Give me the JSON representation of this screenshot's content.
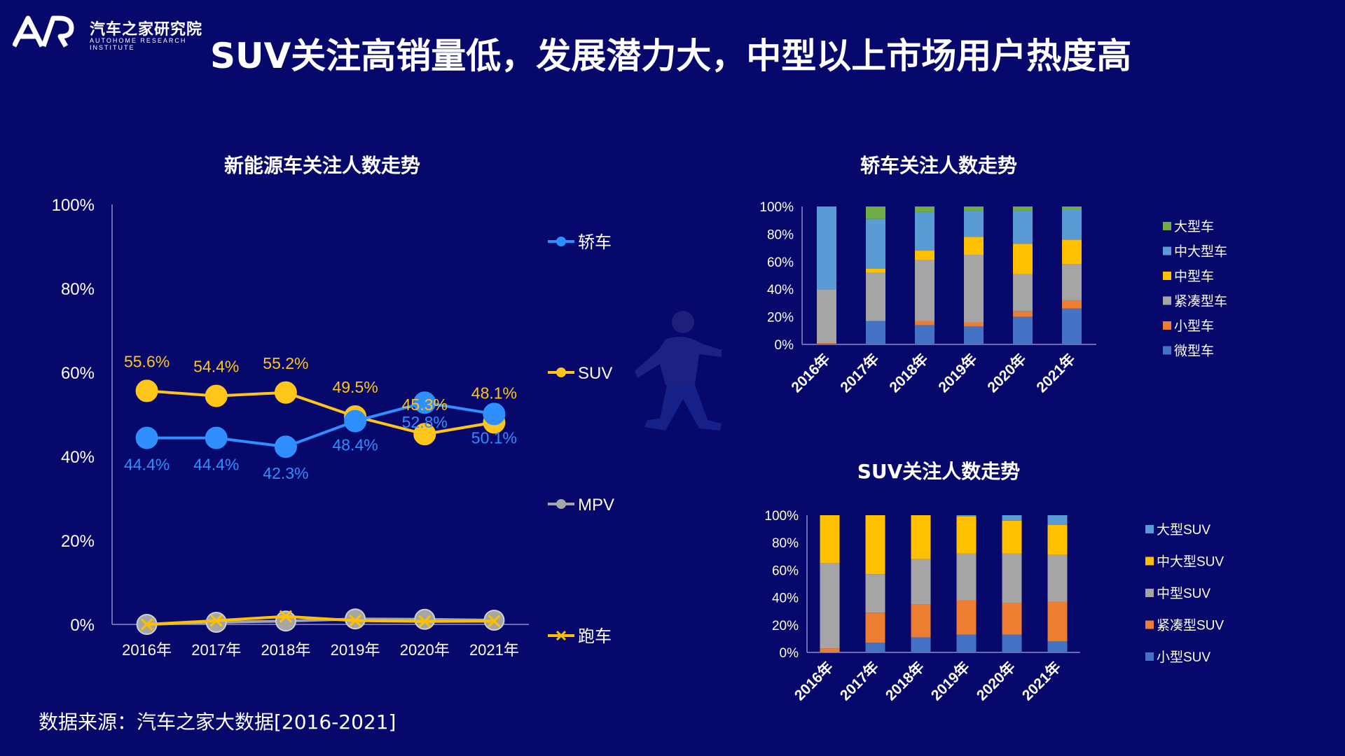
{
  "brand": {
    "name_cn": "汽车之家研究院",
    "name_en": "AUTOHOME RESEARCH INSTITUTE"
  },
  "title": "SUV关注高销量低，发展潜力大，中型以上市场用户热度高",
  "source": "数据来源：汽车之家大数据[2016-2021]",
  "colors": {
    "background": "#06086b",
    "sedan": "#2f8fff",
    "suv": "#ffc519",
    "mpv": "#a6a6a6",
    "sports": "#ffc000",
    "micro": "#4472c4",
    "small": "#ed7d31",
    "compact": "#a5a5a5",
    "mid": "#ffc000",
    "midlarge": "#5b9bd5",
    "large": "#70ad47"
  },
  "chart_data": [
    {
      "id": "nev-trend",
      "type": "line",
      "title": "新能源车关注人数走势",
      "categories": [
        "2016年",
        "2017年",
        "2018年",
        "2019年",
        "2020年",
        "2021年"
      ],
      "y_ticks": [
        "0%",
        "20%",
        "40%",
        "60%",
        "80%",
        "100%"
      ],
      "ylim": [
        0,
        100
      ],
      "legend_position": "right",
      "series": [
        {
          "name": "轿车",
          "values": [
            44.4,
            44.4,
            42.3,
            48.4,
            52.8,
            50.1
          ],
          "labels": [
            "44.4%",
            "44.4%",
            "42.3%",
            "48.4%",
            "52.8%",
            "50.1%"
          ]
        },
        {
          "name": "SUV",
          "values": [
            55.6,
            54.4,
            55.2,
            49.5,
            45.3,
            48.1
          ],
          "labels": [
            "55.6%",
            "54.4%",
            "55.2%",
            "49.5%",
            "45.3%",
            "48.1%"
          ]
        },
        {
          "name": "MPV",
          "values": [
            0,
            0.5,
            0.8,
            1.3,
            1.2,
            1.0
          ]
        },
        {
          "name": "跑车",
          "values": [
            0,
            0.9,
            1.9,
            0.9,
            0.7,
            0.8
          ]
        }
      ]
    },
    {
      "id": "sedan-trend",
      "type": "bar",
      "stacked": true,
      "title": "轿车关注人数走势",
      "categories": [
        "2016年",
        "2017年",
        "2018年",
        "2019年",
        "2020年",
        "2021年"
      ],
      "y_ticks": [
        "0%",
        "20%",
        "40%",
        "60%",
        "80%",
        "100%"
      ],
      "ylim": [
        0,
        100
      ],
      "legend_position": "right",
      "series": [
        {
          "name": "微型车",
          "values": [
            0.5,
            17,
            14,
            13,
            20,
            26
          ]
        },
        {
          "name": "小型车",
          "values": [
            0.5,
            0,
            3,
            3,
            4,
            6
          ]
        },
        {
          "name": "紧凑型车",
          "values": [
            39,
            35,
            44,
            49,
            27,
            26
          ]
        },
        {
          "name": "中型车",
          "values": [
            0,
            3,
            7,
            13,
            22,
            18
          ]
        },
        {
          "name": "中大型车",
          "values": [
            60,
            36,
            28,
            19,
            24,
            22
          ]
        },
        {
          "name": "大型车",
          "values": [
            0,
            9,
            4,
            3,
            3,
            2
          ]
        }
      ]
    },
    {
      "id": "suv-trend",
      "type": "bar",
      "stacked": true,
      "title": "SUV关注人数走势",
      "categories": [
        "2016年",
        "2017年",
        "2018年",
        "2019年",
        "2020年",
        "2021年"
      ],
      "y_ticks": [
        "0%",
        "20%",
        "40%",
        "60%",
        "80%",
        "100%"
      ],
      "ylim": [
        0,
        100
      ],
      "legend_position": "right",
      "series": [
        {
          "name": "小型SUV",
          "values": [
            0,
            7,
            11,
            13,
            13,
            8
          ]
        },
        {
          "name": "紧凑型SUV",
          "values": [
            3,
            22,
            24,
            25,
            23,
            29
          ]
        },
        {
          "name": "中型SUV",
          "values": [
            62,
            28,
            33,
            34,
            36,
            34
          ]
        },
        {
          "name": "中大型SUV",
          "values": [
            35,
            43,
            32,
            27,
            24,
            22
          ]
        },
        {
          "name": "大型SUV",
          "values": [
            0,
            0,
            0,
            1,
            4,
            7
          ]
        }
      ]
    }
  ]
}
